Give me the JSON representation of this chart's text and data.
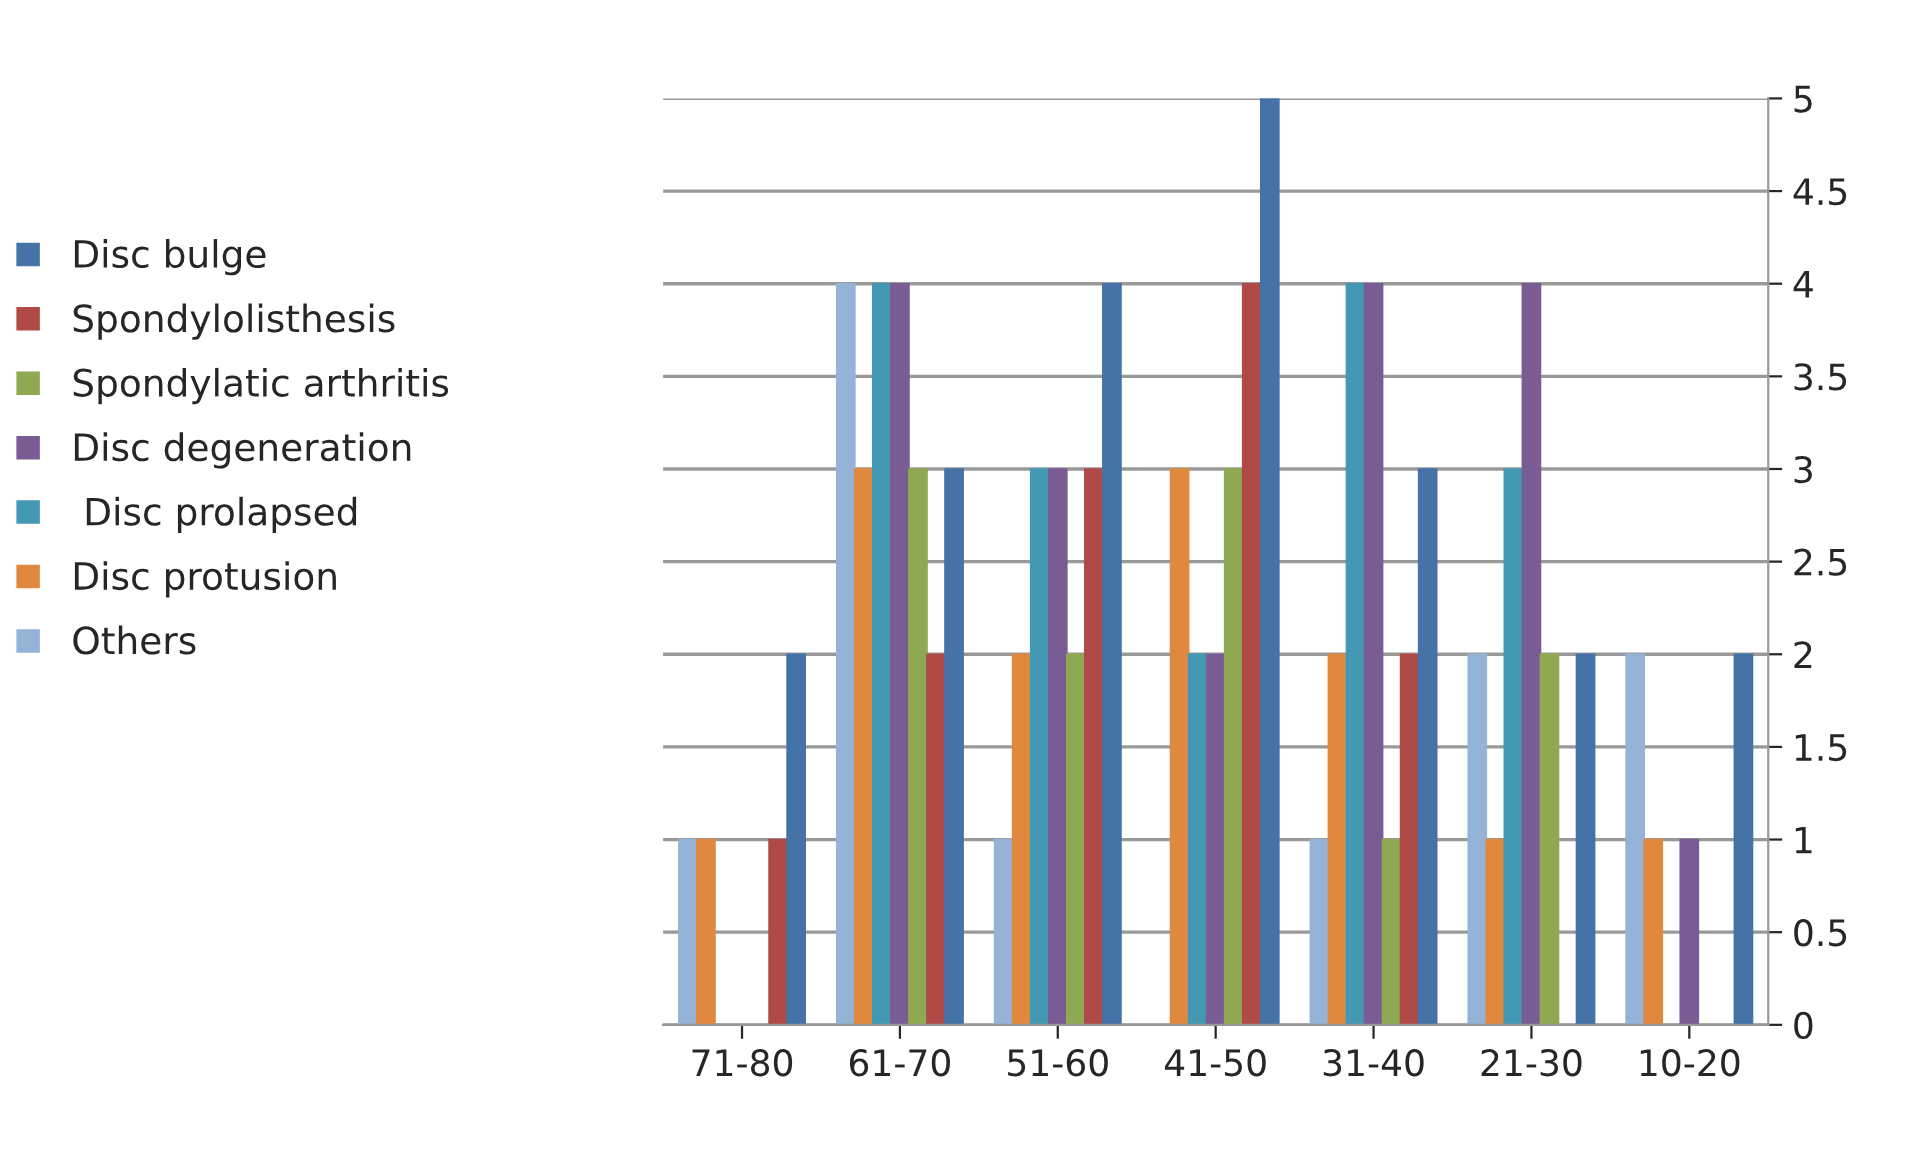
{
  "chart_data": {
    "type": "bar",
    "categories": [
      "71-80",
      "61-70",
      "51-60",
      "41-50",
      "31-40",
      "21-30",
      "10-20"
    ],
    "series": [
      {
        "name": "Others",
        "color": "#95b3d7",
        "values": [
          1,
          4,
          1,
          0,
          1,
          2,
          2
        ]
      },
      {
        "name": "Disc protusion",
        "color": "#e0883d",
        "values": [
          1,
          3,
          2,
          3,
          2,
          1,
          1
        ]
      },
      {
        "name": " Disc prolapsed",
        "color": "#4399b3",
        "values": [
          0,
          4,
          3,
          2,
          4,
          3,
          0
        ]
      },
      {
        "name": "Disc degeneration",
        "color": "#7a5c94",
        "values": [
          0,
          4,
          3,
          2,
          4,
          4,
          1
        ]
      },
      {
        "name": "Spondylatic arthritis",
        "color": "#8fa852",
        "values": [
          0,
          3,
          2,
          3,
          1,
          2,
          0
        ]
      },
      {
        "name": "Spondylolisthesis",
        "color": "#b04a47",
        "values": [
          1,
          2,
          3,
          4,
          2,
          0,
          0
        ]
      },
      {
        "name": "Disc bulge",
        "color": "#4572a7",
        "values": [
          2,
          3,
          4,
          5,
          3,
          2,
          2
        ]
      }
    ],
    "ylim": [
      0,
      5
    ],
    "yticks": [
      0,
      0.5,
      1,
      1.5,
      2,
      2.5,
      3,
      3.5,
      4,
      4.5,
      5
    ],
    "grid": "y",
    "legend": "left"
  }
}
